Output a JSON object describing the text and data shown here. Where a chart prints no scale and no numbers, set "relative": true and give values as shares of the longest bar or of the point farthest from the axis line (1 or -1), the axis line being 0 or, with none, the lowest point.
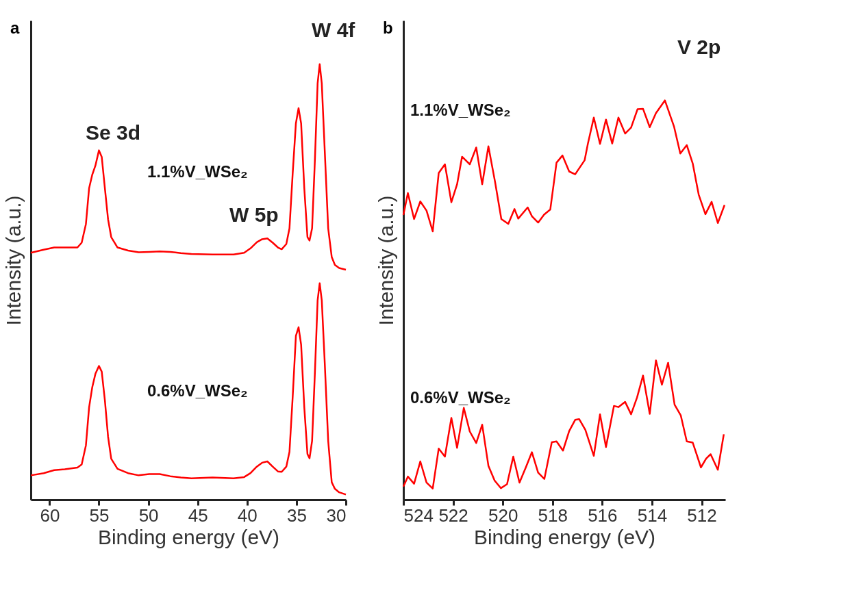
{
  "chart_data": [
    {
      "type": "line",
      "title": "a",
      "xlabel": "Binding energy (eV)",
      "ylabel": "Intensity (a.u.)",
      "relative": true,
      "legend": false,
      "grid": false,
      "xlim": [
        61.9,
        30
      ],
      "xticks": [
        60,
        55,
        50,
        45,
        40,
        35,
        30
      ],
      "x": [
        61.9,
        60.6,
        59.53,
        58.46,
        57.18,
        56.75,
        56.32,
        56.0,
        55.68,
        55.36,
        55.0,
        54.72,
        54.4,
        54.08,
        53.76,
        53.12,
        52.05,
        50.98,
        49.91,
        48.85,
        47.78,
        46.71,
        45.64,
        43.5,
        41.37,
        40.3,
        39.66,
        39.02,
        38.48,
        37.95,
        37.41,
        36.88,
        36.5,
        36.03,
        35.71,
        35.38,
        35.06,
        34.79,
        34.53,
        34.21,
        33.89,
        33.68,
        33.42,
        33.14,
        32.86,
        32.65,
        32.44,
        32.14,
        31.79,
        31.43,
        31.11,
        30.68,
        30.0
      ],
      "series": [
        {
          "name": "1.1%V_WSe₂",
          "color": "#ff0000",
          "values": [
            0.567,
            0.574,
            0.579,
            0.579,
            0.579,
            0.59,
            0.633,
            0.715,
            0.746,
            0.767,
            0.802,
            0.787,
            0.715,
            0.644,
            0.603,
            0.579,
            0.572,
            0.568,
            0.569,
            0.57,
            0.569,
            0.566,
            0.564,
            0.563,
            0.563,
            0.567,
            0.577,
            0.591,
            0.598,
            0.6,
            0.59,
            0.579,
            0.575,
            0.587,
            0.623,
            0.751,
            0.864,
            0.899,
            0.864,
            0.715,
            0.603,
            0.595,
            0.623,
            0.777,
            0.956,
            1.0,
            0.956,
            0.802,
            0.623,
            0.557,
            0.539,
            0.532,
            0.528
          ]
        },
        {
          "name": "0.6%V_WSe₂",
          "color": "#ff0000",
          "values": [
            0.056,
            0.061,
            0.068,
            0.07,
            0.074,
            0.081,
            0.125,
            0.212,
            0.258,
            0.289,
            0.307,
            0.294,
            0.228,
            0.145,
            0.094,
            0.071,
            0.061,
            0.056,
            0.059,
            0.059,
            0.054,
            0.051,
            0.049,
            0.051,
            0.049,
            0.052,
            0.061,
            0.076,
            0.085,
            0.088,
            0.076,
            0.065,
            0.064,
            0.076,
            0.11,
            0.238,
            0.376,
            0.396,
            0.356,
            0.212,
            0.105,
            0.095,
            0.135,
            0.289,
            0.458,
            0.497,
            0.458,
            0.315,
            0.135,
            0.04,
            0.025,
            0.017,
            0.012
          ]
        }
      ],
      "annotations": [
        "Se 3d",
        "W 4f",
        "W 5p"
      ]
    },
    {
      "type": "line",
      "title": "b",
      "xlabel": "Binding energy (eV)",
      "ylabel": "Intensity (a.u.)",
      "relative": true,
      "legend": false,
      "grid": false,
      "xlim": [
        524,
        511.05
      ],
      "xticks": [
        524,
        522,
        520,
        518,
        516,
        514,
        512
      ],
      "series": [
        {
          "name": "1.1%V_WSe₂",
          "color": "#ff0000",
          "x": [
            524,
            523.82,
            523.57,
            523.32,
            523.07,
            522.82,
            522.58,
            522.33,
            522.07,
            521.84,
            521.64,
            521.33,
            521.07,
            520.83,
            520.58,
            520.31,
            520.06,
            519.78,
            519.53,
            519.38,
            519.0,
            518.83,
            518.58,
            518.34,
            518.09,
            517.84,
            517.6,
            517.33,
            517.09,
            516.71,
            516.58,
            516.34,
            516.09,
            515.85,
            515.6,
            515.35,
            515.08,
            514.84,
            514.58,
            514.36,
            514.09,
            513.84,
            513.48,
            513.11,
            512.86,
            512.6,
            512.36,
            512.12,
            511.85,
            511.6,
            511.35,
            511.08
          ],
          "values": [
            0.713,
            0.768,
            0.703,
            0.747,
            0.724,
            0.672,
            0.818,
            0.84,
            0.745,
            0.79,
            0.859,
            0.84,
            0.882,
            0.79,
            0.885,
            0.795,
            0.703,
            0.691,
            0.728,
            0.704,
            0.732,
            0.71,
            0.694,
            0.714,
            0.727,
            0.844,
            0.862,
            0.822,
            0.815,
            0.85,
            0.891,
            0.957,
            0.891,
            0.952,
            0.892,
            0.957,
            0.917,
            0.932,
            0.978,
            0.979,
            0.933,
            0.968,
            1.0,
            0.934,
            0.867,
            0.888,
            0.842,
            0.764,
            0.715,
            0.746,
            0.693,
            0.738
          ]
        },
        {
          "name": "0.6%V_WSe₂",
          "color": "#ff0000",
          "x": [
            524,
            523.82,
            523.57,
            523.32,
            523.07,
            522.82,
            522.58,
            522.33,
            522.07,
            521.84,
            521.57,
            521.33,
            521.07,
            520.83,
            520.58,
            520.33,
            520.08,
            519.83,
            519.58,
            519.33,
            519.08,
            518.83,
            518.58,
            518.33,
            518.03,
            517.84,
            517.58,
            517.33,
            517.09,
            516.93,
            516.68,
            516.34,
            516.09,
            515.85,
            515.53,
            515.35,
            515.08,
            514.84,
            514.6,
            514.36,
            514.09,
            513.84,
            513.6,
            513.35,
            513.09,
            512.84,
            512.6,
            512.36,
            512.03,
            511.82,
            511.64,
            511.35,
            511.11
          ],
          "values": [
            0.033,
            0.058,
            0.04,
            0.096,
            0.043,
            0.028,
            0.128,
            0.108,
            0.205,
            0.13,
            0.23,
            0.171,
            0.142,
            0.188,
            0.085,
            0.048,
            0.029,
            0.039,
            0.108,
            0.043,
            0.08,
            0.119,
            0.068,
            0.052,
            0.144,
            0.146,
            0.123,
            0.172,
            0.2,
            0.202,
            0.175,
            0.11,
            0.214,
            0.132,
            0.235,
            0.232,
            0.245,
            0.214,
            0.256,
            0.311,
            0.215,
            0.349,
            0.288,
            0.343,
            0.238,
            0.211,
            0.146,
            0.143,
            0.081,
            0.103,
            0.114,
            0.075,
            0.164
          ]
        }
      ],
      "annotations": [
        "V 2p"
      ]
    }
  ]
}
